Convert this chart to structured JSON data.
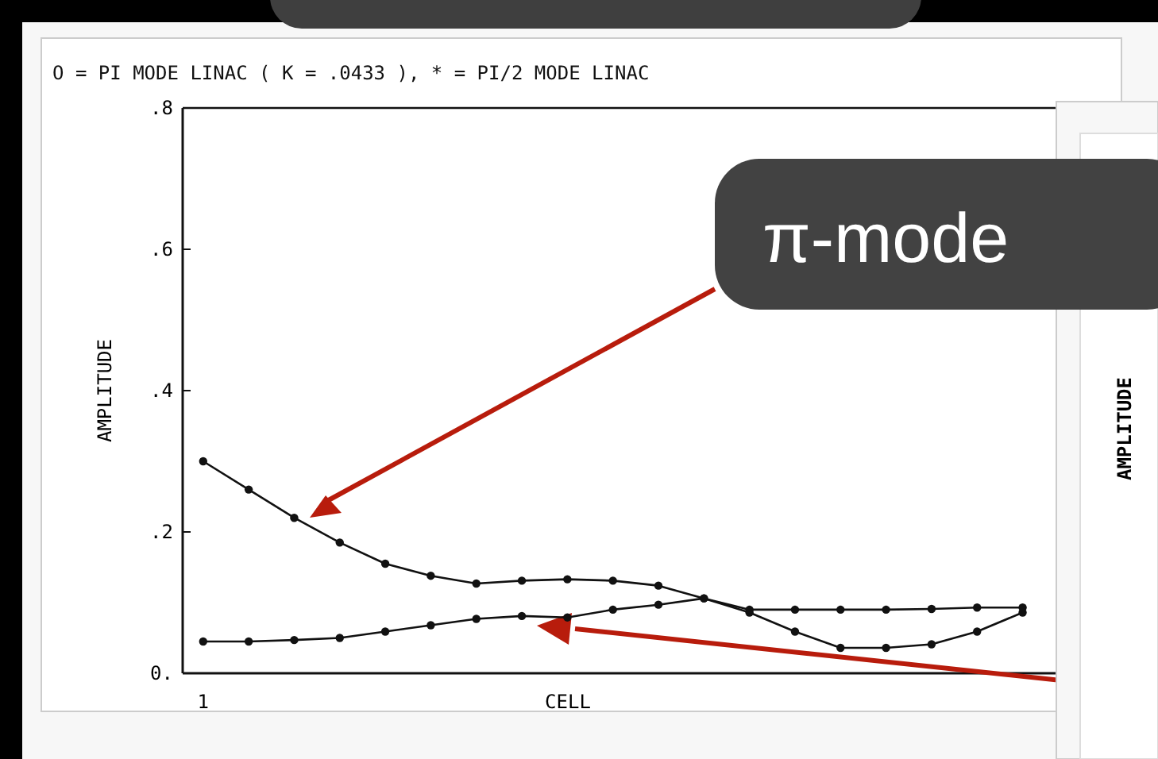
{
  "chart_data": {
    "type": "line",
    "title": "O = PI MODE LINAC ( K = .0433 ),  * = PI/2 MODE LINAC",
    "xlabel": "CELL",
    "ylabel": "AMPLITUDE",
    "categories": [
      "1",
      null,
      null,
      null,
      null,
      null,
      null,
      null,
      null,
      null,
      null,
      null,
      null,
      null,
      null,
      null,
      null,
      null,
      null
    ],
    "series": [
      {
        "color": "#111111",
        "values": [
          0.3,
          0.26,
          0.22,
          0.185,
          0.155,
          0.138,
          0.127,
          0.131,
          0.133,
          0.131,
          0.124,
          0.106,
          0.086,
          0.059,
          0.036,
          0.036,
          0.041,
          0.059,
          0.086
        ]
      },
      {
        "color": "#111111",
        "values": [
          0.045,
          0.045,
          0.047,
          0.05,
          0.059,
          0.068,
          0.077,
          0.081,
          0.079,
          0.09,
          0.097,
          0.106,
          0.09,
          0.09,
          0.09,
          0.09,
          0.091,
          0.093,
          0.093
        ]
      }
    ],
    "ylim": [
      0,
      0.8
    ],
    "yticks": [
      {
        "value": 0,
        "label": "0."
      },
      {
        "value": 0.2,
        "label": ".2"
      },
      {
        "value": 0.4,
        "label": ".4"
      },
      {
        "value": 0.6,
        "label": ".6"
      },
      {
        "value": 0.8,
        "label": ".8"
      }
    ],
    "marker": "circle",
    "line_style": "solid",
    "grid": false,
    "annotations": [
      "π-mode",
      "AMPLITUDE"
    ]
  }
}
